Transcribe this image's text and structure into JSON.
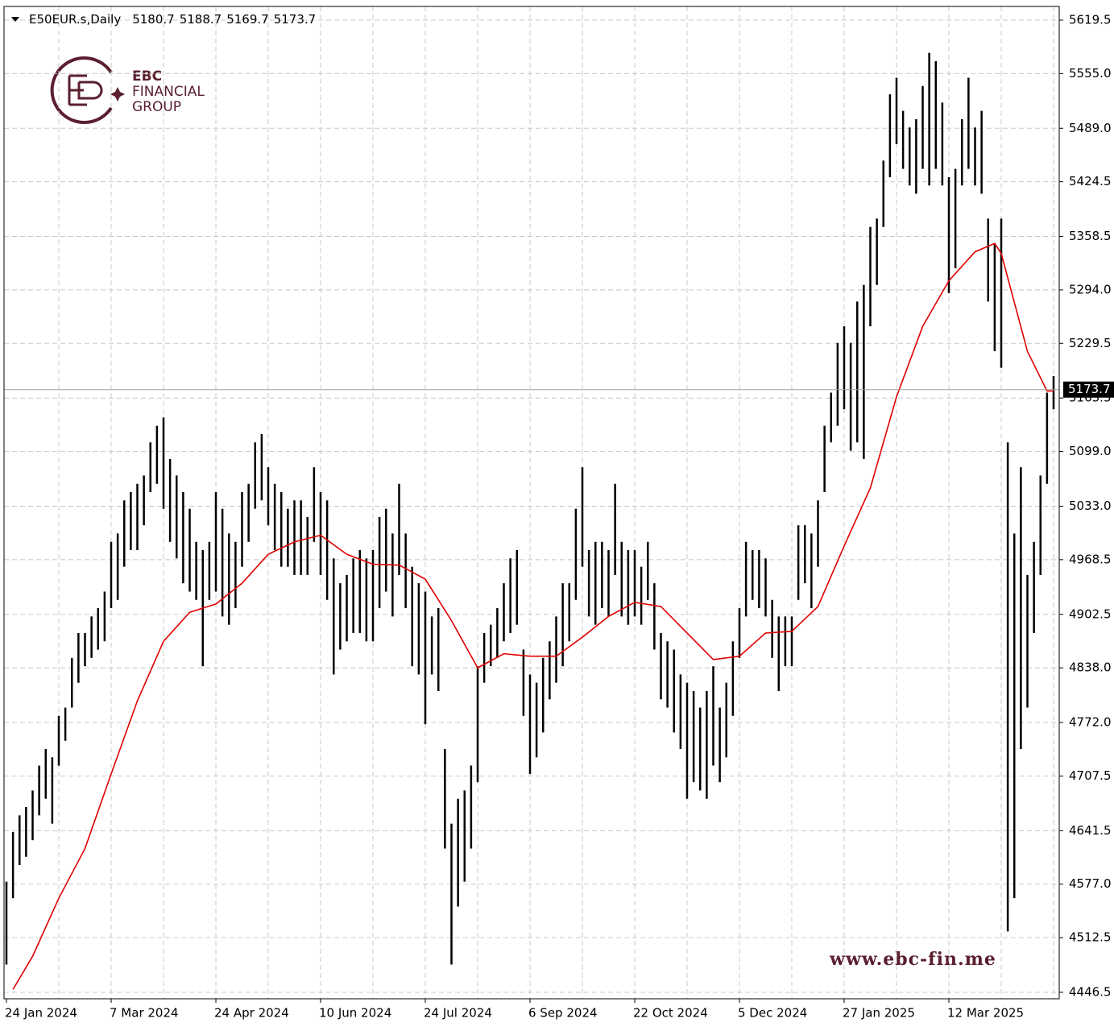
{
  "chart_data": {
    "type": "ohlc",
    "symbol": "E50EUR.s,Daily",
    "quote": [
      5180.7,
      5188.7,
      5169.7,
      5173.7
    ],
    "logo": [
      "EBC",
      "FINANCIAL",
      "GROUP"
    ],
    "watermark": "www.ebc-fin.me",
    "last": 5173.7,
    "ylim": [
      4438.7,
      5636
    ],
    "yticks": [
      4446.5,
      4512.5,
      4577,
      4641.5,
      4707.5,
      4772,
      4838,
      4902.5,
      4968.5,
      5033,
      5099,
      5163.5,
      5229.5,
      5294,
      5358.5,
      5424.5,
      5489,
      5555,
      5619.5
    ],
    "ytick_labels": [
      "4446.5",
      "4512.5",
      "4577.0",
      "4641.5",
      "4707.5",
      "4772.0",
      "4838.0",
      "4902.5",
      "4968.5",
      "5033.0",
      "5099.0",
      "5163.5",
      "5229.5",
      "5294.0",
      "5358.5",
      "5424.5",
      "5489.0",
      "5555.0",
      "5619.5"
    ],
    "grid": true,
    "bar_color": "#000000",
    "categories": [
      "24 Jan 2024",
      null,
      null,
      null,
      null,
      null,
      null,
      null,
      null,
      null,
      null,
      null,
      null,
      null,
      null,
      null,
      "7 Mar 2024",
      null,
      null,
      null,
      null,
      null,
      null,
      null,
      null,
      null,
      null,
      null,
      null,
      null,
      null,
      null,
      "24 Apr 2024",
      null,
      null,
      null,
      null,
      null,
      null,
      null,
      null,
      null,
      null,
      null,
      null,
      null,
      null,
      null,
      "10 Jun 2024",
      null,
      null,
      null,
      null,
      null,
      null,
      null,
      null,
      null,
      null,
      null,
      null,
      null,
      null,
      null,
      "24 Jul 2024",
      null,
      null,
      null,
      null,
      null,
      null,
      null,
      null,
      null,
      null,
      null,
      null,
      null,
      null,
      null,
      "6 Sep 2024",
      null,
      null,
      null,
      null,
      null,
      null,
      null,
      null,
      null,
      null,
      null,
      null,
      null,
      null,
      null,
      "22 Oct 2024",
      null,
      null,
      null,
      null,
      null,
      null,
      null,
      null,
      null,
      null,
      null,
      null,
      null,
      null,
      null,
      "5 Dec 2024",
      null,
      null,
      null,
      null,
      null,
      null,
      null,
      null,
      null,
      null,
      null,
      null,
      null,
      null,
      null,
      "27 Jan 2025",
      null,
      null,
      null,
      null,
      null,
      null,
      null,
      null,
      null,
      null,
      null,
      null,
      null,
      null,
      null,
      "12 Mar 2025",
      null,
      null,
      null,
      null,
      null,
      null,
      null,
      null,
      null,
      null,
      null,
      null,
      null,
      null,
      null,
      null
    ],
    "high": [
      4580,
      4640,
      4660,
      4670,
      4690,
      4720,
      4740,
      4730,
      4780,
      4790,
      4850,
      4880,
      4880,
      4900,
      4910,
      4930,
      4990,
      5000,
      5040,
      5050,
      5060,
      5070,
      5110,
      5130,
      5140,
      5090,
      5070,
      5050,
      5030,
      4990,
      4980,
      4990,
      5050,
      5030,
      5000,
      4990,
      5050,
      5060,
      5110,
      5120,
      5080,
      5060,
      5050,
      5030,
      5040,
      5040,
      5020,
      5080,
      5050,
      5040,
      4970,
      4940,
      4950,
      4970,
      4980,
      4970,
      4980,
      5020,
      5030,
      5000,
      5060,
      5000,
      4960,
      4940,
      4930,
      4900,
      4910,
      4740,
      4650,
      4680,
      4690,
      4720,
      4840,
      4880,
      4890,
      4910,
      4940,
      4970,
      4980,
      4860,
      4830,
      4820,
      4850,
      4870,
      4900,
      4940,
      4940,
      5030,
      5080,
      4980,
      4990,
      4990,
      4980,
      5060,
      4990,
      4980,
      4980,
      4960,
      4990,
      4940,
      4880,
      4870,
      4860,
      4830,
      4820,
      4810,
      4790,
      4810,
      4840,
      4790,
      4820,
      4870,
      4910,
      4990,
      4980,
      4980,
      4970,
      4920,
      4900,
      4900,
      4900,
      5010,
      5010,
      5000,
      5040,
      5130,
      5170,
      5230,
      5250,
      5230,
      5280,
      5300,
      5370,
      5380,
      5450,
      5530,
      5550,
      5510,
      5490,
      5500,
      5540,
      5580,
      5570,
      5520,
      5430,
      5440,
      5500,
      5550,
      5490,
      5510,
      5380,
      5350,
      5380,
      5110,
      5000,
      5080,
      4950,
      4990,
      5070,
      5170,
      5190
    ],
    "low": [
      4480,
      4560,
      4600,
      4610,
      4630,
      4660,
      4680,
      4650,
      4720,
      4750,
      4790,
      4820,
      4840,
      4850,
      4860,
      4870,
      4910,
      4920,
      4960,
      4980,
      4980,
      5010,
      5050,
      5060,
      5030,
      4990,
      4970,
      4940,
      4930,
      4920,
      4840,
      4920,
      4930,
      4900,
      4890,
      4910,
      4960,
      4990,
      5030,
      5040,
      5010,
      4980,
      4960,
      4960,
      4950,
      4950,
      4950,
      4990,
      4950,
      4920,
      4830,
      4860,
      4870,
      4880,
      4880,
      4870,
      4870,
      4910,
      4930,
      4900,
      4950,
      4910,
      4840,
      4830,
      4770,
      4830,
      4810,
      4620,
      4480,
      4550,
      4580,
      4620,
      4700,
      4820,
      4840,
      4850,
      4870,
      4880,
      4890,
      4780,
      4710,
      4730,
      4760,
      4800,
      4820,
      4840,
      4870,
      4920,
      4960,
      4900,
      4890,
      4910,
      4900,
      4950,
      4900,
      4890,
      4900,
      4890,
      4920,
      4860,
      4800,
      4790,
      4760,
      4740,
      4680,
      4700,
      4690,
      4680,
      4720,
      4700,
      4730,
      4780,
      4850,
      4900,
      4920,
      4910,
      4900,
      4850,
      4810,
      4840,
      4840,
      4920,
      4940,
      4910,
      4960,
      5050,
      5110,
      5130,
      5150,
      5100,
      5110,
      5090,
      5250,
      5300,
      5370,
      5430,
      5470,
      5440,
      5420,
      5410,
      5440,
      5420,
      5440,
      5420,
      5290,
      5320,
      5420,
      5440,
      5420,
      5410,
      5280,
      5220,
      5200,
      4520,
      4560,
      4740,
      4790,
      4880,
      4950,
      5060,
      5150
    ],
    "ma": {
      "color": "#e00000",
      "x": [
        1,
        4,
        8,
        12,
        16,
        20,
        24,
        28,
        32,
        36,
        40,
        44,
        48,
        52,
        56,
        60,
        64,
        68,
        72,
        76,
        80,
        84,
        88,
        92,
        96,
        100,
        104,
        108,
        112,
        116,
        120,
        124,
        128,
        132,
        136,
        140,
        144,
        148,
        151,
        152,
        156,
        159,
        160
      ],
      "values": [
        4450,
        4490,
        4560,
        4620,
        4710,
        4798,
        4870,
        4905,
        4915,
        4940,
        4975,
        4990,
        4998,
        4975,
        4963,
        4962,
        4945,
        4895,
        4838,
        4855,
        4852,
        4852,
        4875,
        4900,
        4917,
        4912,
        4880,
        4848,
        4852,
        4880,
        4882,
        4912,
        4985,
        5055,
        5165,
        5250,
        5305,
        5340,
        5350,
        5338,
        5220,
        5172,
        5172
      ]
    }
  }
}
